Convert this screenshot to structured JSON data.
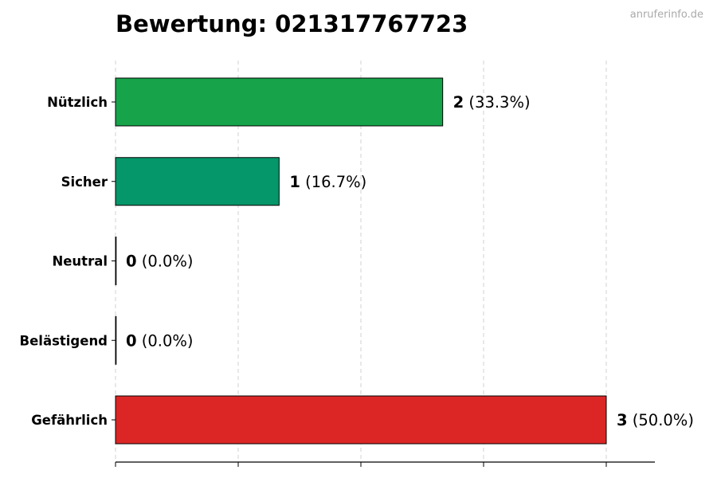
{
  "watermark": "anruferinfo.de",
  "chart_data": {
    "type": "bar",
    "orientation": "horizontal",
    "title": "Bewertung: 021317767723",
    "xlabel": "",
    "ylabel": "",
    "categories": [
      "Nützlich",
      "Sicher",
      "Neutral",
      "Belästigend",
      "Gefährlich"
    ],
    "values": [
      2,
      1,
      0,
      0,
      3
    ],
    "value_labels": [
      {
        "count": "2",
        "percent": "(33.3%)"
      },
      {
        "count": "1",
        "percent": "(16.7%)"
      },
      {
        "count": "0",
        "percent": "(0.0%)"
      },
      {
        "count": "0",
        "percent": "(0.0%)"
      },
      {
        "count": "3",
        "percent": "(50.0%)"
      }
    ],
    "colors": [
      "#16a34a",
      "#059669",
      "#6b7280",
      "#ea580c",
      "#dc2626"
    ],
    "xlim": [
      0,
      3.3
    ],
    "x_ticks": [
      0,
      0.75,
      1.5,
      2.25,
      3.0
    ],
    "grid": true
  }
}
